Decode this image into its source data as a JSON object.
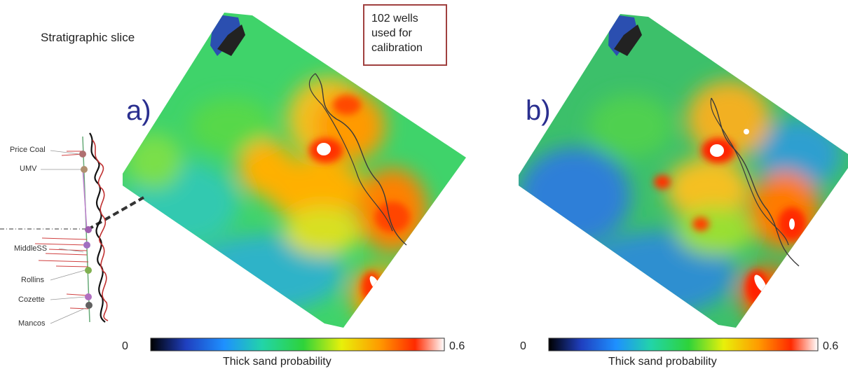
{
  "slice_title": "Stratigraphic slice",
  "callout": {
    "lines": [
      "102 wells",
      "used for",
      "calibration"
    ]
  },
  "panels": [
    {
      "label": "a)"
    },
    {
      "label": "b)"
    }
  ],
  "colorbar": {
    "min_label": "0",
    "max_label": "0.6",
    "caption": "Thick sand probability",
    "colors": [
      "#000000",
      "#1f3fbf",
      "#1e90ff",
      "#22d4a8",
      "#2ed33a",
      "#e8f00a",
      "#ff9a00",
      "#ff2a00",
      "#ffffff"
    ]
  },
  "well_log": {
    "markers": [
      "Price Coal",
      "UMV",
      "MiddleSS",
      "Rollins",
      "Cozette",
      "Mancos"
    ]
  }
}
